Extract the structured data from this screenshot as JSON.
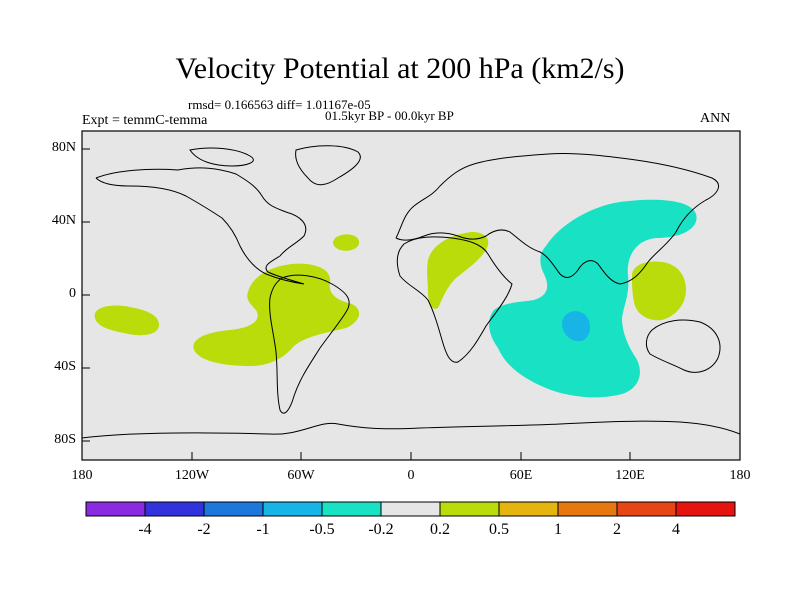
{
  "map": {
    "title": "Velocity Potential at 200 hPa (km2/s)",
    "stats_line": "rmsd= 0.166563 diff= 1.01167e-05",
    "period": "01.5kyr BP - 00.0kyr BP",
    "experiment": "Expt = temmC-temma",
    "season": "ANN",
    "background_color": "#e6e6e6",
    "lat_labels": [
      "80N",
      "40N",
      "0",
      "40S",
      "80S"
    ],
    "lon_labels": [
      "180",
      "120W",
      "60W",
      "0",
      "60E",
      "120E",
      "180"
    ]
  },
  "colorbar": {
    "colors": [
      "#8a2be2",
      "#3333dd",
      "#1e78dc",
      "#17b4e6",
      "#19e1c3",
      "#e6e6e6",
      "#b9dc0a",
      "#e6b40f",
      "#e6780f",
      "#e64614",
      "#e6140f"
    ],
    "labels": [
      "-4",
      "-2",
      "-1",
      "-0.5",
      "-0.2",
      "0.2",
      "0.5",
      "1",
      "2",
      "4"
    ]
  }
}
